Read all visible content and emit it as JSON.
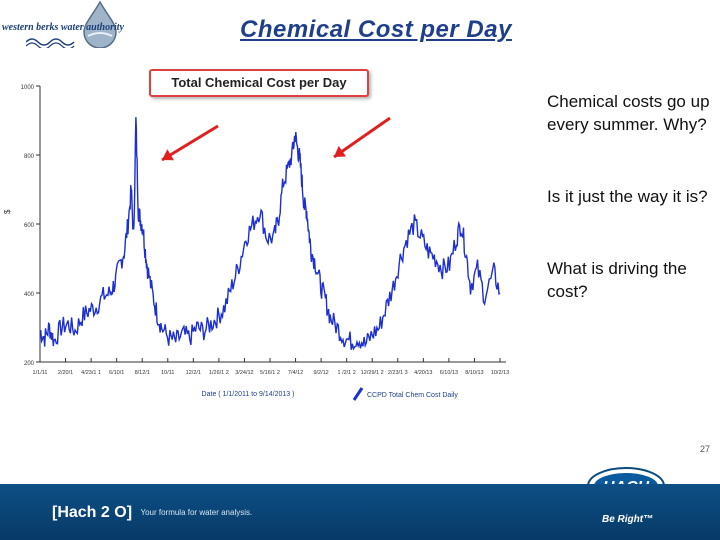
{
  "header": {
    "logo_text": "western berks water authority",
    "slide_title": "Chemical Cost per Day"
  },
  "side_text": {
    "p1": "Chemical costs go up every summer.  Why?",
    "p2": "Is it just the way it is?",
    "p3": "What is driving the cost?"
  },
  "slide_number": "27",
  "footer": {
    "hach2o_label": "[Hach 2 O]",
    "hach2o_tagline": "Your formula for water analysis.",
    "hach_logo": "HACH",
    "be_right": "Be Right™"
  },
  "colors": {
    "line": "#1c2fd0",
    "arrow": "#e02020",
    "footer": "#0b4a80",
    "title": "#1f3f8a"
  },
  "chart_data": {
    "type": "line",
    "title": "Total Chemical Cost per Day",
    "xlabel": "Date  ( 1/1/2011  to  9/14/2013 )",
    "ylabel": "$",
    "ylim": [
      200,
      1000
    ],
    "yticks": [
      "1000",
      "800",
      "600",
      "400",
      "200"
    ],
    "xticks": [
      "1/1/11",
      "2/20/1",
      "4/23/1 1",
      "6/10/1",
      "8/12/1",
      "10/11",
      "12/2/1",
      "1/26/1 2",
      "3/24/12",
      "5/16/1 2",
      "7/4/12",
      "9/2/12",
      "1 /2/1 2",
      "12/29/1 2",
      "2/23/1 3",
      "4/20/13",
      "6/10/13",
      "8/10/13",
      "10/2/13"
    ],
    "legend": "CCPD Total Chem Cost Daily",
    "series": [
      {
        "name": "CCPD Total Chem Cost Daily",
        "x": [
          0,
          10,
          20,
          30,
          45,
          60,
          75,
          90,
          105,
          120,
          135,
          150,
          160,
          170,
          180,
          188,
          195,
          200,
          205,
          210,
          215,
          220,
          225,
          230,
          240,
          250,
          260,
          275,
          290,
          305,
          320,
          335,
          350,
          365,
          380,
          395,
          410,
          425,
          440,
          455,
          470,
          485,
          500,
          510,
          520,
          530,
          540,
          545,
          550,
          555,
          560,
          565,
          570,
          575,
          580,
          590,
          600,
          610,
          620,
          635,
          650,
          665,
          680,
          695,
          710,
          725,
          740,
          755,
          770,
          785,
          800,
          815,
          830,
          845,
          860,
          875,
          890,
          900,
          910,
          920,
          935,
          950,
          970,
          983
        ],
        "y": [
          290,
          270,
          300,
          260,
          300,
          310,
          290,
          330,
          350,
          360,
          390,
          400,
          430,
          480,
          520,
          600,
          700,
          560,
          900,
          640,
          610,
          590,
          520,
          470,
          400,
          340,
          300,
          270,
          260,
          280,
          270,
          300,
          290,
          310,
          330,
          360,
          420,
          480,
          560,
          600,
          640,
          560,
          560,
          620,
          720,
          760,
          810,
          860,
          820,
          790,
          720,
          650,
          640,
          570,
          520,
          480,
          420,
          380,
          330,
          300,
          270,
          260,
          270,
          250,
          280,
          300,
          360,
          420,
          500,
          560,
          600,
          560,
          520,
          500,
          470,
          480,
          560,
          600,
          520,
          420,
          470,
          390,
          460,
          400
        ]
      }
    ],
    "annotations": [
      "arrow to 2011 summer peak",
      "arrow to 2012 summer peak"
    ]
  }
}
